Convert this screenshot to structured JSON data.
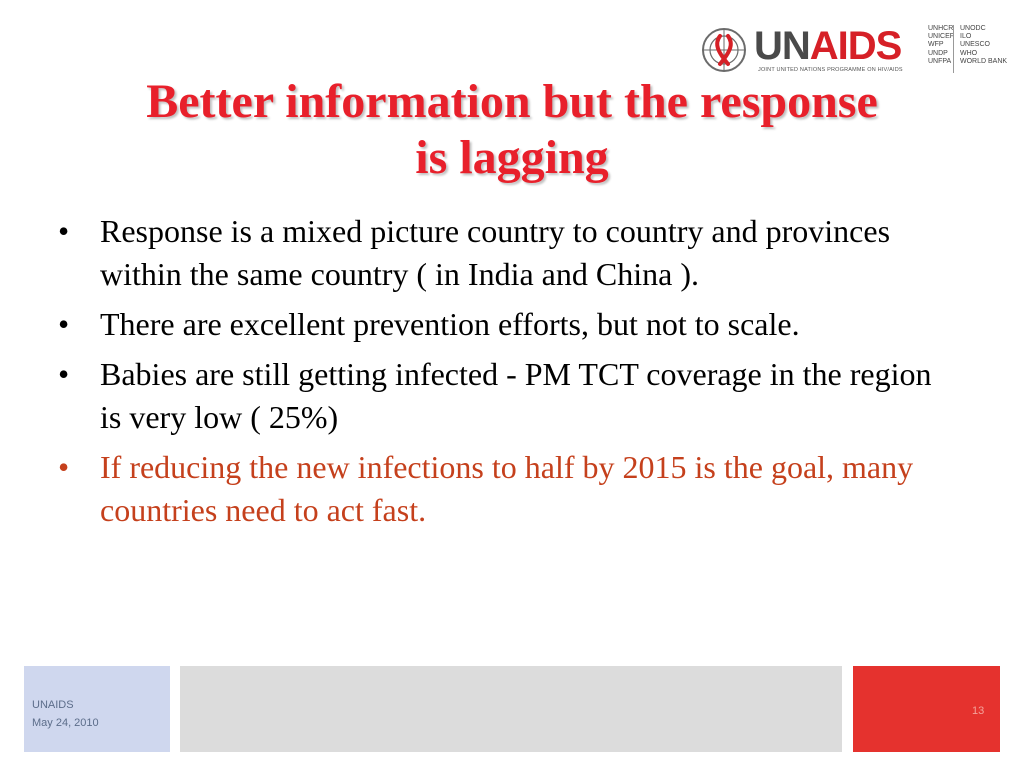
{
  "logo": {
    "name_part1": "UN",
    "name_part2": "AIDS",
    "tagline": "JOINT UNITED NATIONS PROGRAMME ON HIV/AIDS",
    "cosponsors_col1": [
      "UNHCR",
      "UNICEF",
      "WFP",
      "UNDP",
      "UNFPA"
    ],
    "cosponsors_col2": [
      "UNODC",
      "ILO",
      "UNESCO",
      "WHO",
      "WORLD BANK"
    ],
    "brand_color": "#d62027"
  },
  "slide": {
    "title_line1": "Better information but the response",
    "title_line2": "is lagging",
    "bullets": [
      "Response is a mixed picture country to country and provinces within the same country ( in India and China ).",
      "There are excellent prevention efforts, but not to scale.",
      "Babies are still getting infected - PM TCT coverage in the region is very low ( 25%)",
      "If reducing the new infections to half by 2015 is the goal, many countries need to act fast."
    ],
    "bullet_glyph": "•",
    "highlight_color": "#c5401c",
    "title_color": "#e8202b"
  },
  "footer": {
    "org": "UNAIDS",
    "date": "May 24, 2010",
    "page_number": "13"
  }
}
